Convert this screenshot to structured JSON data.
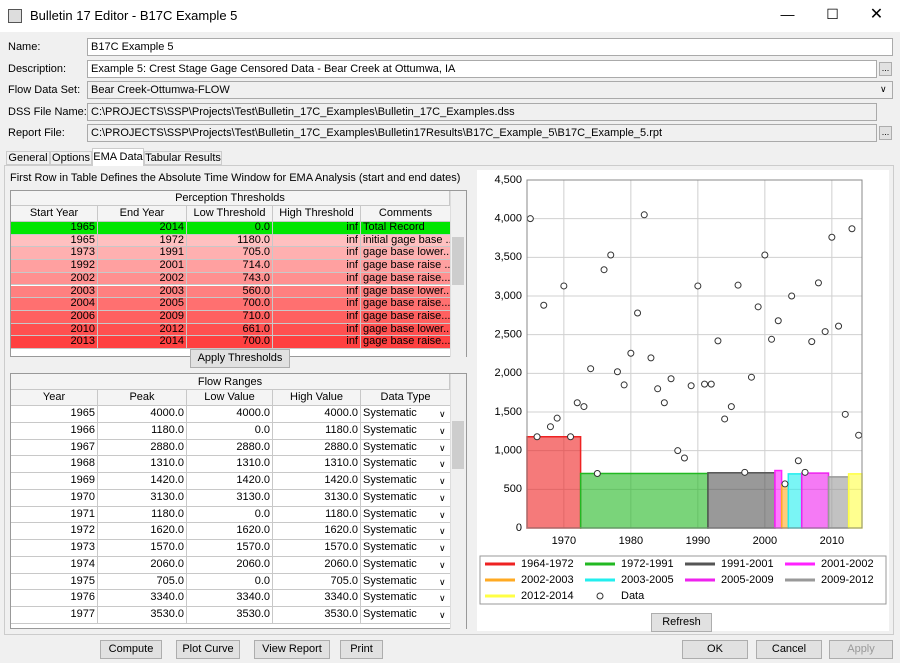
{
  "window": {
    "title": "Bulletin 17 Editor - B17C Example 5"
  },
  "form": {
    "fields": [
      {
        "label": "Name:",
        "value": "B17C Example 5"
      },
      {
        "label": "Description:",
        "value": "Example 5: Crest Stage Gage Censored Data - Bear Creek at Ottumwa, IA"
      },
      {
        "label": "Flow Data Set:",
        "value": "Bear Creek-Ottumwa-FLOW"
      },
      {
        "label": "DSS File Name:",
        "value": "C:\\PROJECTS\\SSP\\Projects\\Test\\Bulletin_17C_Examples\\Bulletin_17C_Examples.dss"
      },
      {
        "label": "Report File:",
        "value": "C:\\PROJECTS\\SSP\\Projects\\Test\\Bulletin_17C_Examples\\Bulletin17Results\\B17C_Example_5\\B17C_Example_5.rpt"
      }
    ]
  },
  "tabs": [
    "General",
    "Options",
    "EMA Data",
    "Tabular Results"
  ],
  "instruction": "First Row in Table Defines the Absolute Time Window for EMA Analysis (start and end dates)",
  "perception": {
    "title": "Perception Thresholds",
    "columns": [
      "Start Year",
      "End Year",
      "Low Threshold",
      "High Threshold",
      "Comments"
    ],
    "rows": [
      [
        "1965",
        "2014",
        "0.0",
        "inf",
        "Total Record"
      ],
      [
        "1965",
        "1972",
        "1180.0",
        "inf",
        "initial gage base ..."
      ],
      [
        "1973",
        "1991",
        "705.0",
        "inf",
        "gage base lower..."
      ],
      [
        "1992",
        "2001",
        "714.0",
        "inf",
        "gage base raise ..."
      ],
      [
        "2002",
        "2002",
        "743.0",
        "inf",
        "gage base raise..."
      ],
      [
        "2003",
        "2003",
        "560.0",
        "inf",
        "gage base lower..."
      ],
      [
        "2004",
        "2005",
        "700.0",
        "inf",
        "gage base raise..."
      ],
      [
        "2006",
        "2009",
        "710.0",
        "inf",
        "gage base raise..."
      ],
      [
        "2010",
        "2012",
        "661.0",
        "inf",
        "gage base lower..."
      ],
      [
        "2013",
        "2014",
        "700.0",
        "inf",
        "gage base raise..."
      ]
    ]
  },
  "apply_button": "Apply Thresholds",
  "flow": {
    "title": "Flow Ranges",
    "columns": [
      "Year",
      "Peak",
      "Low Value",
      "High Value",
      "Data Type"
    ],
    "rows": [
      [
        "1965",
        "4000.0",
        "4000.0",
        "4000.0",
        "Systematic"
      ],
      [
        "1966",
        "1180.0",
        "0.0",
        "1180.0",
        "Systematic"
      ],
      [
        "1967",
        "2880.0",
        "2880.0",
        "2880.0",
        "Systematic"
      ],
      [
        "1968",
        "1310.0",
        "1310.0",
        "1310.0",
        "Systematic"
      ],
      [
        "1969",
        "1420.0",
        "1420.0",
        "1420.0",
        "Systematic"
      ],
      [
        "1970",
        "3130.0",
        "3130.0",
        "3130.0",
        "Systematic"
      ],
      [
        "1971",
        "1180.0",
        "0.0",
        "1180.0",
        "Systematic"
      ],
      [
        "1972",
        "1620.0",
        "1620.0",
        "1620.0",
        "Systematic"
      ],
      [
        "1973",
        "1570.0",
        "1570.0",
        "1570.0",
        "Systematic"
      ],
      [
        "1974",
        "2060.0",
        "2060.0",
        "2060.0",
        "Systematic"
      ],
      [
        "1975",
        "705.0",
        "0.0",
        "705.0",
        "Systematic"
      ],
      [
        "1976",
        "3340.0",
        "3340.0",
        "3340.0",
        "Systematic"
      ],
      [
        "1977",
        "3530.0",
        "3530.0",
        "3530.0",
        "Systematic"
      ]
    ]
  },
  "chart_data": {
    "type": "scatter",
    "grid": true,
    "xlim": [
      1964.5,
      2014.5
    ],
    "xticks": [
      1970,
      1980,
      1990,
      2000,
      2010
    ],
    "ylim": [
      0,
      4500
    ],
    "yticks": [
      {
        "value": 0,
        "label": "0"
      },
      {
        "value": 500,
        "label": "500"
      },
      {
        "value": 1000,
        "label": "1,000"
      },
      {
        "value": 1500,
        "label": "1,500"
      },
      {
        "value": 2000,
        "label": "2,000"
      },
      {
        "value": 2500,
        "label": "2,500"
      },
      {
        "value": 3000,
        "label": "3,000"
      },
      {
        "value": 3500,
        "label": "3,500"
      },
      {
        "value": 4000,
        "label": "4,000"
      },
      {
        "value": 4500,
        "label": "4,500"
      }
    ],
    "thresholds": [
      {
        "name": "1964-1972",
        "color": "#ee2222",
        "x": [
          1964.5,
          1972.5
        ],
        "value": 1180
      },
      {
        "name": "1972-1991",
        "color": "#22b822",
        "x": [
          1972.5,
          1991.5
        ],
        "value": 705
      },
      {
        "name": "1991-2001",
        "color": "#555555",
        "x": [
          1991.5,
          2001.5
        ],
        "value": 714
      },
      {
        "name": "2001-2002",
        "color": "#ff22ff",
        "x": [
          2001.5,
          2002.5
        ],
        "value": 743
      },
      {
        "name": "2002-2003",
        "color": "#ffaa22",
        "x": [
          2002.5,
          2003.5
        ],
        "value": 560
      },
      {
        "name": "2003-2005",
        "color": "#22eeee",
        "x": [
          2003.5,
          2005.5
        ],
        "value": 700
      },
      {
        "name": "2005-2009",
        "color": "#ee22ee",
        "x": [
          2005.5,
          2009.5
        ],
        "value": 710
      },
      {
        "name": "2009-2012",
        "color": "#999999",
        "x": [
          2009.5,
          2012.5
        ],
        "value": 661
      },
      {
        "name": "2012-2014",
        "color": "#ffff44",
        "x": [
          2012.5,
          2014.5
        ],
        "value": 700
      }
    ],
    "x": [
      1965,
      1966,
      1967,
      1968,
      1969,
      1970,
      1971,
      1972,
      1973,
      1974,
      1975,
      1976,
      1977,
      1978,
      1979,
      1980,
      1981,
      1982,
      1983,
      1984,
      1985,
      1986,
      1987,
      1988,
      1989,
      1990,
      1991,
      1992,
      1993,
      1994,
      1995,
      1996,
      1997,
      1998,
      1999,
      2000,
      2001,
      2002,
      2003,
      2004,
      2005,
      2006,
      2007,
      2008,
      2009,
      2010,
      2011,
      2012,
      2013,
      2014
    ],
    "series": [
      {
        "name": "Data",
        "color": "#333333",
        "values": [
          4000,
          1180,
          2880,
          1310,
          1420,
          3130,
          1180,
          1620,
          1570,
          2060,
          705,
          3340,
          3530,
          2020,
          1850,
          2260,
          2780,
          4050,
          2200,
          1800,
          1620,
          1930,
          1000,
          905,
          1840,
          3130,
          1860,
          1860,
          2420,
          1410,
          1570,
          3140,
          720,
          1950,
          2860,
          3530,
          2440,
          2680,
          570,
          3000,
          870,
          720,
          2410,
          3170,
          2540,
          3760,
          2610,
          1470,
          3870,
          1200
        ]
      }
    ]
  },
  "refresh_button": "Refresh",
  "buttons": [
    "Compute",
    "Plot Curve",
    "View Report",
    "Print",
    "OK",
    "Cancel",
    "Apply"
  ]
}
